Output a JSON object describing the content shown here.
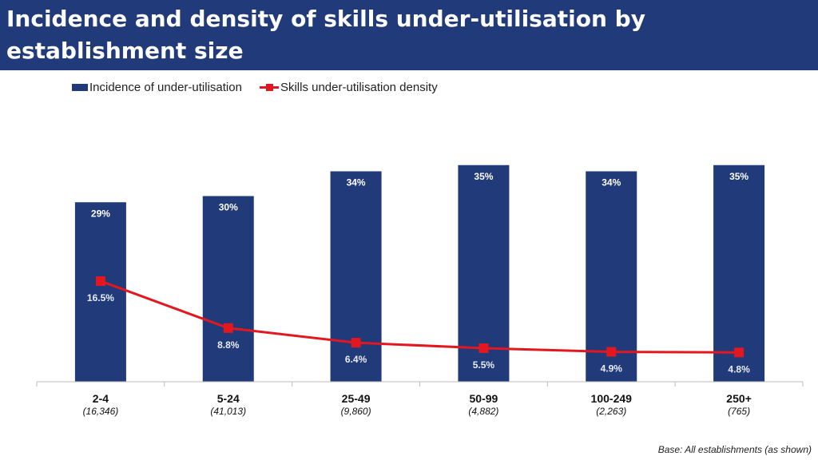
{
  "header": {
    "title": "Incidence and density of skills under-utilisation by establishment size"
  },
  "footer": {
    "base_note": "Base: All establishments (as shown)"
  },
  "colors": {
    "header_bg": "#213a79",
    "bar": "#213a79",
    "line": "#e3171f"
  },
  "chart_data": {
    "type": "bar",
    "title": "Incidence and density of skills under-utilisation by establishment size",
    "xlabel": "",
    "ylabel": "",
    "ylim": [
      0,
      36
    ],
    "grid": false,
    "legend": "top-left",
    "categories": [
      "2-4",
      "5-24",
      "25-49",
      "50-99",
      "100-249",
      "250+"
    ],
    "bases": [
      "(16,346)",
      "(41,013)",
      "(9,860)",
      "(4,882)",
      "(2,263)",
      "(765)"
    ],
    "series": [
      {
        "name": "Incidence of under-utilisation",
        "kind": "bar",
        "values": [
          29,
          30,
          34,
          35,
          34,
          35
        ],
        "labels": [
          "29%",
          "30%",
          "34%",
          "35%",
          "34%",
          "35%"
        ]
      },
      {
        "name": "Skills under-utilisation density",
        "kind": "line",
        "values": [
          16.5,
          8.8,
          6.4,
          5.5,
          4.9,
          4.8
        ],
        "labels": [
          "16.5%",
          "8.8%",
          "6.4%",
          "5.5%",
          "4.9%",
          "4.8%"
        ]
      }
    ]
  }
}
